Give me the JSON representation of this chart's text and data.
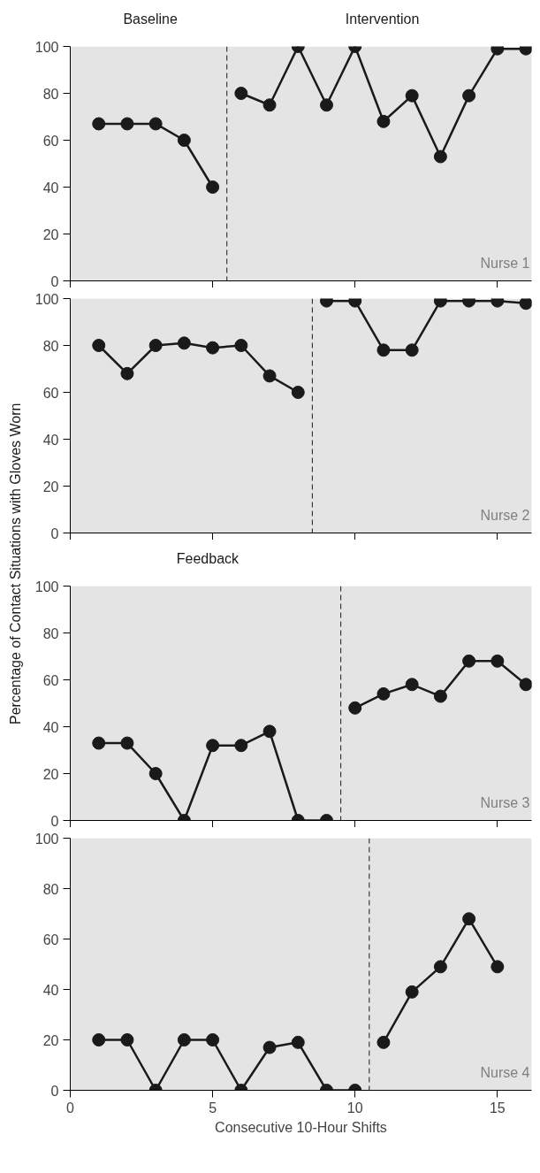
{
  "chart_data": [
    {
      "type": "line",
      "title": "Nurse 1",
      "annotations": [
        "Baseline",
        "Intervention"
      ],
      "xlim": [
        0,
        16.2
      ],
      "ylim": [
        0,
        100
      ],
      "xticks": [
        0,
        5,
        10,
        15
      ],
      "yticks": [
        0,
        20,
        40,
        60,
        80,
        100
      ],
      "tick_labels": "y",
      "marker": "circle",
      "series": [
        {
          "color": "#1a1a1a",
          "x": [
            1,
            2,
            3,
            4,
            5
          ],
          "values": [
            67,
            67,
            67,
            60,
            40
          ]
        },
        {
          "color": "#1a1a1a",
          "x": [
            6,
            7,
            8,
            9,
            10,
            11,
            12,
            13,
            14,
            15,
            16
          ],
          "values": [
            80,
            75,
            100,
            75,
            100,
            68,
            79,
            53,
            79,
            99,
            99
          ]
        }
      ],
      "ref_lines": [
        {
          "axis": "x",
          "value": 5.5,
          "color": "#1a1a1a",
          "line_style": "dashed"
        }
      ],
      "bands": [
        {
          "axis": "y",
          "from": 0,
          "to": 100,
          "color": "#e4e4e4"
        }
      ]
    },
    {
      "type": "line",
      "title": "Nurse 2",
      "ylabel": "Percentage of Contact Situations with Gloves Worn",
      "xlim": [
        0,
        16.2
      ],
      "ylim": [
        0,
        100
      ],
      "xticks": [
        0,
        5,
        10,
        15
      ],
      "yticks": [
        0,
        20,
        40,
        60,
        80,
        100
      ],
      "tick_labels": "y",
      "marker": "circle",
      "series": [
        {
          "color": "#1a1a1a",
          "x": [
            1,
            2,
            3,
            4,
            5,
            6,
            7,
            8
          ],
          "values": [
            80,
            68,
            80,
            81,
            79,
            80,
            67,
            60
          ]
        },
        {
          "color": "#1a1a1a",
          "x": [
            9,
            10,
            11,
            12,
            13,
            14,
            15,
            16
          ],
          "values": [
            99,
            99,
            78,
            78,
            99,
            99,
            99,
            98
          ]
        }
      ],
      "ref_lines": [
        {
          "axis": "x",
          "value": 8.5,
          "color": "#1a1a1a",
          "line_style": "dashed"
        }
      ],
      "bands": [
        {
          "axis": "y",
          "from": 0,
          "to": 100,
          "color": "#e4e4e4"
        }
      ]
    },
    {
      "type": "line",
      "title": "Nurse 3",
      "annotations": [
        "Feedback"
      ],
      "xlim": [
        0,
        16.2
      ],
      "ylim": [
        0,
        100
      ],
      "xticks": [
        0,
        5,
        10,
        15
      ],
      "yticks": [
        0,
        20,
        40,
        60,
        80,
        100
      ],
      "tick_labels": "y",
      "marker": "circle",
      "series": [
        {
          "color": "#1a1a1a",
          "x": [
            1,
            2,
            3,
            4,
            5,
            6,
            7,
            8,
            9
          ],
          "values": [
            33,
            33,
            20,
            0,
            32,
            32,
            38,
            0,
            0
          ]
        },
        {
          "color": "#1a1a1a",
          "x": [
            10,
            11,
            12,
            13,
            14,
            15,
            16
          ],
          "values": [
            48,
            54,
            58,
            53,
            68,
            68,
            58
          ]
        }
      ],
      "ref_lines": [
        {
          "axis": "x",
          "value": 9.5,
          "color": "#1a1a1a",
          "line_style": "dashed"
        }
      ],
      "bands": [
        {
          "axis": "y",
          "from": 0,
          "to": 100,
          "color": "#e4e4e4"
        }
      ]
    },
    {
      "type": "line",
      "title": "Nurse 4",
      "xlabel": "Consecutive 10-Hour Shifts",
      "xlim": [
        0,
        16.2
      ],
      "ylim": [
        0,
        100
      ],
      "xticks": [
        0,
        5,
        10,
        15
      ],
      "yticks": [
        0,
        20,
        40,
        60,
        80,
        100
      ],
      "marker": "circle",
      "series": [
        {
          "color": "#1a1a1a",
          "x": [
            1,
            2,
            3,
            4,
            5,
            6,
            7,
            8,
            9,
            10
          ],
          "values": [
            20,
            20,
            0,
            20,
            20,
            0,
            17,
            19,
            0,
            0
          ]
        },
        {
          "color": "#1a1a1a",
          "x": [
            11,
            12,
            13,
            14,
            15
          ],
          "values": [
            19,
            39,
            49,
            68,
            49
          ]
        }
      ],
      "ref_lines": [
        {
          "axis": "x",
          "value": 10.5,
          "color": "#1a1a1a",
          "line_style": "dashed"
        }
      ],
      "bands": [
        {
          "axis": "y",
          "from": 0,
          "to": 100,
          "color": "#e4e4e4"
        }
      ]
    }
  ]
}
